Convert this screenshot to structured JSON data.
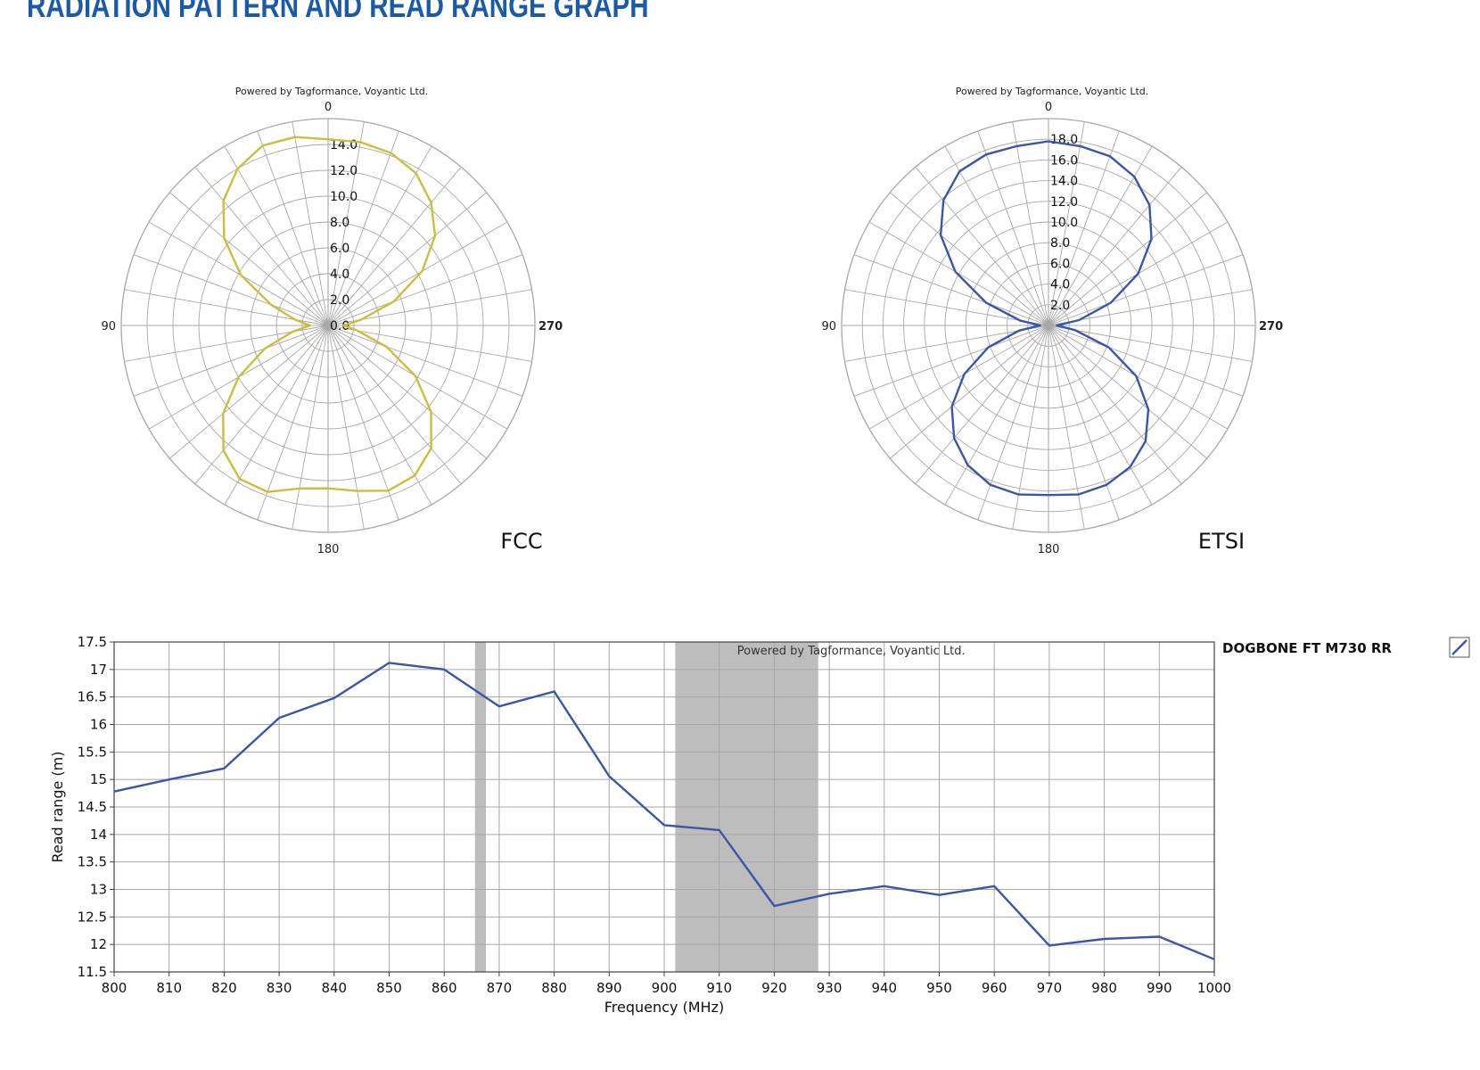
{
  "page": {
    "title": "RADIATION PATTERN AND READ RANGE GRAPH"
  },
  "colors": {
    "fcc": "#c8c03c",
    "etsi": "#3a56a8",
    "line": "#3a56a8",
    "band": "#bdbdbd",
    "grid": "#a8a8a8",
    "title": "#1a5aa6"
  },
  "chart_data": [
    {
      "type": "polar",
      "credit": "Powered by Tagformance, Voyantic Ltd.",
      "caption": "FCC",
      "angle_labels": [
        "0",
        "90",
        "180",
        "270"
      ],
      "angle_step_deg": 10,
      "radial_max": 16,
      "radial_ticks": [
        "0.0",
        "2.0",
        "4.0",
        "6.0",
        "8.0",
        "10.0",
        "12.0",
        "14.0"
      ],
      "theta_deg": [
        0,
        10,
        20,
        30,
        40,
        50,
        60,
        70,
        80,
        90,
        100,
        110,
        120,
        130,
        140,
        150,
        160,
        170,
        180,
        190,
        200,
        210,
        220,
        230,
        240,
        250,
        260,
        270,
        280,
        290,
        300,
        310,
        320,
        330,
        340,
        350
      ],
      "values": [
        14.4,
        14.8,
        14.8,
        14.0,
        12.6,
        10.5,
        7.8,
        4.7,
        2.6,
        1.4,
        2.8,
        5.2,
        8.0,
        10.6,
        12.6,
        13.7,
        13.7,
        12.8,
        12.6,
        13.0,
        13.6,
        13.4,
        12.4,
        10.4,
        7.8,
        4.8,
        2.3,
        1.2,
        2.6,
        5.4,
        8.4,
        10.8,
        12.4,
        13.6,
        14.2,
        14.4
      ]
    },
    {
      "type": "polar",
      "credit": "Powered by Tagformance, Voyantic Ltd.",
      "caption": "ETSI",
      "angle_labels": [
        "0",
        "90",
        "180",
        "270"
      ],
      "angle_step_deg": 10,
      "radial_max": 20,
      "radial_ticks": [
        "2.0",
        "4.0",
        "6.0",
        "8.0",
        "10.0",
        "12.0",
        "14.0",
        "16.0",
        "18.0"
      ],
      "theta_deg": [
        0,
        10,
        20,
        30,
        40,
        50,
        60,
        70,
        80,
        90,
        100,
        110,
        120,
        130,
        140,
        150,
        160,
        170,
        180,
        190,
        200,
        210,
        220,
        230,
        240,
        250,
        260,
        270,
        280,
        290,
        300,
        310,
        320,
        330,
        340,
        350
      ],
      "values": [
        17.8,
        17.6,
        17.6,
        17.2,
        15.8,
        13.6,
        10.4,
        6.4,
        2.8,
        0.8,
        2.9,
        6.2,
        9.4,
        12.2,
        14.2,
        15.6,
        16.4,
        16.6,
        16.4,
        16.6,
        16.4,
        15.8,
        14.6,
        12.6,
        9.8,
        6.2,
        2.6,
        0.8,
        3.0,
        6.4,
        10.0,
        13.0,
        15.2,
        16.6,
        17.4,
        17.6
      ]
    },
    {
      "type": "line",
      "credit": "Powered by Tagformance, Voyantic Ltd.",
      "xlabel": "Frequency (MHz)",
      "ylabel": "Read range (m)",
      "xlim": [
        800,
        1000
      ],
      "ylim": [
        11.5,
        17.5
      ],
      "xticks": [
        800,
        810,
        820,
        830,
        840,
        850,
        860,
        870,
        880,
        890,
        900,
        910,
        920,
        930,
        940,
        950,
        960,
        970,
        980,
        990,
        1000
      ],
      "yticks": [
        11.5,
        12,
        12.5,
        13,
        13.5,
        14,
        14.5,
        15,
        15.5,
        16,
        16.5,
        17,
        17.5
      ],
      "ytick_labels": [
        "11.5",
        "12",
        "12.5",
        "13",
        "13.5",
        "14",
        "14.5",
        "15",
        "15.5",
        "16",
        "16.5",
        "17",
        "17.5"
      ],
      "shaded_bands": [
        [
          865.6,
          867.6
        ],
        [
          902,
          928
        ]
      ],
      "grid": true,
      "legend_position": "right",
      "series": [
        {
          "name": "DOGBONE FT M730 RR",
          "x": [
            800,
            810,
            820,
            830,
            840,
            850,
            860,
            870,
            880,
            890,
            900,
            910,
            920,
            930,
            940,
            950,
            960,
            970,
            980,
            990,
            1000
          ],
          "y": [
            14.78,
            15.0,
            15.2,
            16.12,
            16.48,
            17.12,
            17.0,
            16.33,
            16.6,
            15.06,
            14.17,
            14.08,
            12.7,
            12.92,
            13.06,
            12.9,
            13.06,
            11.98,
            12.1,
            12.14,
            11.73
          ]
        }
      ]
    }
  ]
}
